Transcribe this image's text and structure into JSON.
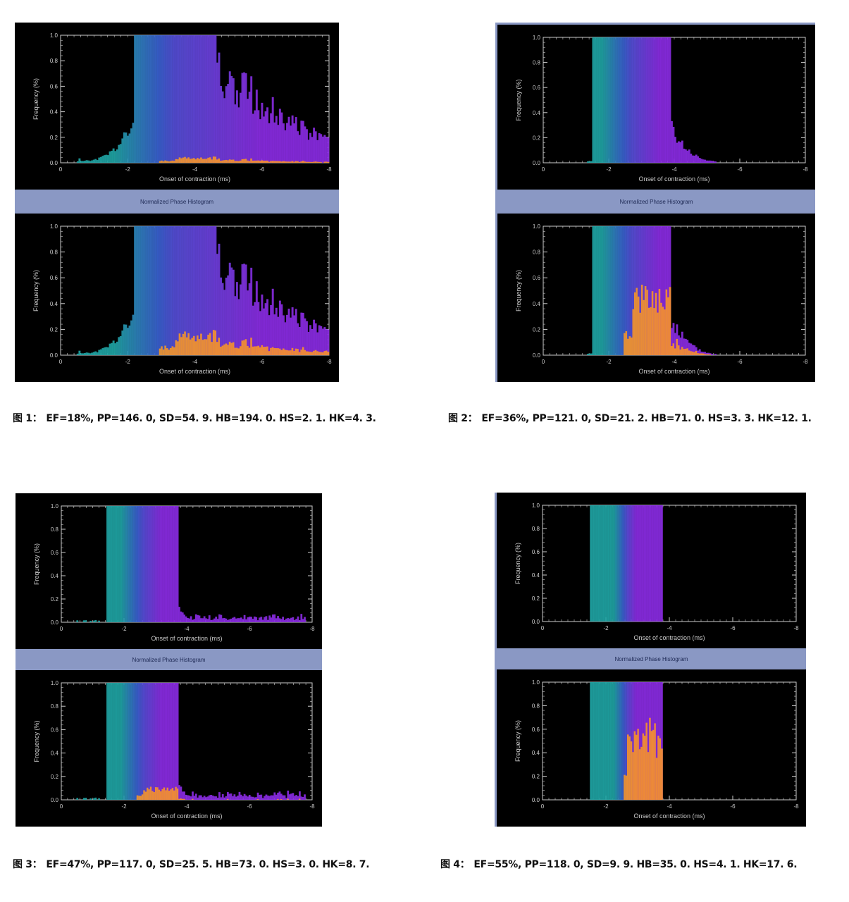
{
  "band_label": "Normalized Phase Histogram",
  "captions": [
    {
      "label": "图 1：",
      "text": "EF=18%, PP=146. 0, SD=54. 9. HB=194. 0. HS=2. 1. HK=4. 3."
    },
    {
      "label": "图 2：",
      "text": "EF=36%, PP=121. 0, SD=21. 2. HB=71. 0. HS=3. 3. HK=12. 1."
    },
    {
      "label": "图 3：",
      "text": "EF=47%, PP=117. 0, SD=25. 5. HB=73. 0. HS=3. 0. HK=8. 7."
    },
    {
      "label": "图 4：",
      "text": "EF=55%, PP=118. 0, SD=9. 9. HB=35. 0. HS=4. 1. HK=17. 6."
    }
  ],
  "colors": {
    "band": "#8a98c4",
    "plot_bg": "#000000",
    "axis": "#cccccc",
    "teal": "#1fa3a3",
    "blue": "#3a5fd0",
    "purple": "#8a2be2",
    "orange": "#ff9a1f"
  },
  "chart_data": [
    {
      "type": "bar",
      "figure": 1,
      "panel": "top",
      "xlabel": "Onset of contraction (ms)",
      "ylabel": "Frequency (%)",
      "x_ticks": [
        "0",
        "-2",
        "-4",
        "-6",
        "-8"
      ],
      "y_ticks": [
        "0.0",
        "0.2",
        "0.4",
        "0.6",
        "0.8",
        "1.0"
      ],
      "ylim": [
        0,
        1.0
      ],
      "xlim": [
        0,
        8
      ],
      "peak_x": 3.4,
      "spread_left": 0.9,
      "spread_right": 2.6,
      "tail": 0.12,
      "seed": 11,
      "orange_fraction": 0.05
    },
    {
      "type": "bar",
      "figure": 1,
      "panel": "bottom",
      "xlabel": "Onset of contraction (ms)",
      "ylabel": "Frequency (%)",
      "x_ticks": [
        "0",
        "-2",
        "-4",
        "-6",
        "-8"
      ],
      "y_ticks": [
        "0.0",
        "0.2",
        "0.4",
        "0.6",
        "0.8",
        "1.0"
      ],
      "ylim": [
        0,
        1.0
      ],
      "xlim": [
        0,
        8
      ],
      "peak_x": 3.4,
      "spread_left": 0.9,
      "spread_right": 2.6,
      "tail": 0.12,
      "seed": 11,
      "orange_fraction": 0.2
    },
    {
      "type": "bar",
      "figure": 2,
      "panel": "top",
      "xlabel": "Onset of contraction (ms)",
      "ylabel": "Frequency (%)",
      "x_ticks": [
        "0",
        "-2",
        "-4",
        "-6",
        "-8"
      ],
      "y_ticks": [
        "0.0",
        "0.2",
        "0.4",
        "0.6",
        "0.8",
        "1.0"
      ],
      "ylim": [
        0,
        1.0
      ],
      "xlim": [
        0,
        8
      ],
      "peak_x": 2.7,
      "spread_left": 0.45,
      "spread_right": 0.85,
      "tail": 0.0,
      "seed": 23,
      "orange_fraction": 0.0
    },
    {
      "type": "bar",
      "figure": 2,
      "panel": "bottom",
      "xlabel": "Onset of contraction (ms)",
      "ylabel": "Frequency (%)",
      "x_ticks": [
        "0",
        "-2",
        "-4",
        "-6",
        "-8"
      ],
      "y_ticks": [
        "0.0",
        "0.2",
        "0.4",
        "0.6",
        "0.8",
        "1.0"
      ],
      "ylim": [
        0,
        1.0
      ],
      "xlim": [
        0,
        8
      ],
      "peak_x": 2.7,
      "spread_left": 0.45,
      "spread_right": 0.85,
      "tail": 0.0,
      "seed": 23,
      "orange_fraction": 0.55
    },
    {
      "type": "bar",
      "figure": 3,
      "panel": "top",
      "xlabel": "Onset of contraction (ms)",
      "ylabel": "Frequency (%)",
      "x_ticks": [
        "0",
        "-2",
        "-4",
        "-6",
        "-8"
      ],
      "y_ticks": [
        "0.0",
        "0.2",
        "0.4",
        "0.6",
        "0.8",
        "1.0"
      ],
      "ylim": [
        0,
        1.0
      ],
      "xlim": [
        0,
        8
      ],
      "peak_x": 2.6,
      "spread_left": 0.35,
      "spread_right": 0.6,
      "tail": 0.06,
      "seed": 37,
      "orange_fraction": 0.0
    },
    {
      "type": "bar",
      "figure": 3,
      "panel": "bottom",
      "xlabel": "Onset of contraction (ms)",
      "ylabel": "Frequency (%)",
      "x_ticks": [
        "0",
        "-2",
        "-4",
        "-6",
        "-8"
      ],
      "y_ticks": [
        "0.0",
        "0.2",
        "0.4",
        "0.6",
        "0.8",
        "1.0"
      ],
      "ylim": [
        0,
        1.0
      ],
      "xlim": [
        0,
        8
      ],
      "peak_x": 2.6,
      "spread_left": 0.35,
      "spread_right": 0.6,
      "tail": 0.06,
      "seed": 37,
      "orange_fraction": 0.12
    },
    {
      "type": "bar",
      "figure": 4,
      "panel": "top",
      "xlabel": "Onset of contraction (ms)",
      "ylabel": "Frequency (%)",
      "x_ticks": [
        "0",
        "-2",
        "-4",
        "-6",
        "-8"
      ],
      "y_ticks": [
        "0.0",
        "0.2",
        "0.4",
        "0.6",
        "0.8",
        "1.0"
      ],
      "ylim": [
        0,
        1.0
      ],
      "xlim": [
        0,
        8
      ],
      "peak_x": 2.65,
      "spread_left": 0.2,
      "spread_right": 0.3,
      "tail": 0.0,
      "seed": 41,
      "orange_fraction": 0.0
    },
    {
      "type": "bar",
      "figure": 4,
      "panel": "bottom",
      "xlabel": "Onset of contraction (ms)",
      "ylabel": "Frequency (%)",
      "x_ticks": [
        "0",
        "-2",
        "-4",
        "-6",
        "-8"
      ],
      "y_ticks": [
        "0.0",
        "0.2",
        "0.4",
        "0.6",
        "0.8",
        "1.0"
      ],
      "ylim": [
        0,
        1.0
      ],
      "xlim": [
        0,
        8
      ],
      "peak_x": 2.65,
      "spread_left": 0.2,
      "spread_right": 0.3,
      "tail": 0.0,
      "seed": 41,
      "orange_fraction": 0.7
    }
  ]
}
